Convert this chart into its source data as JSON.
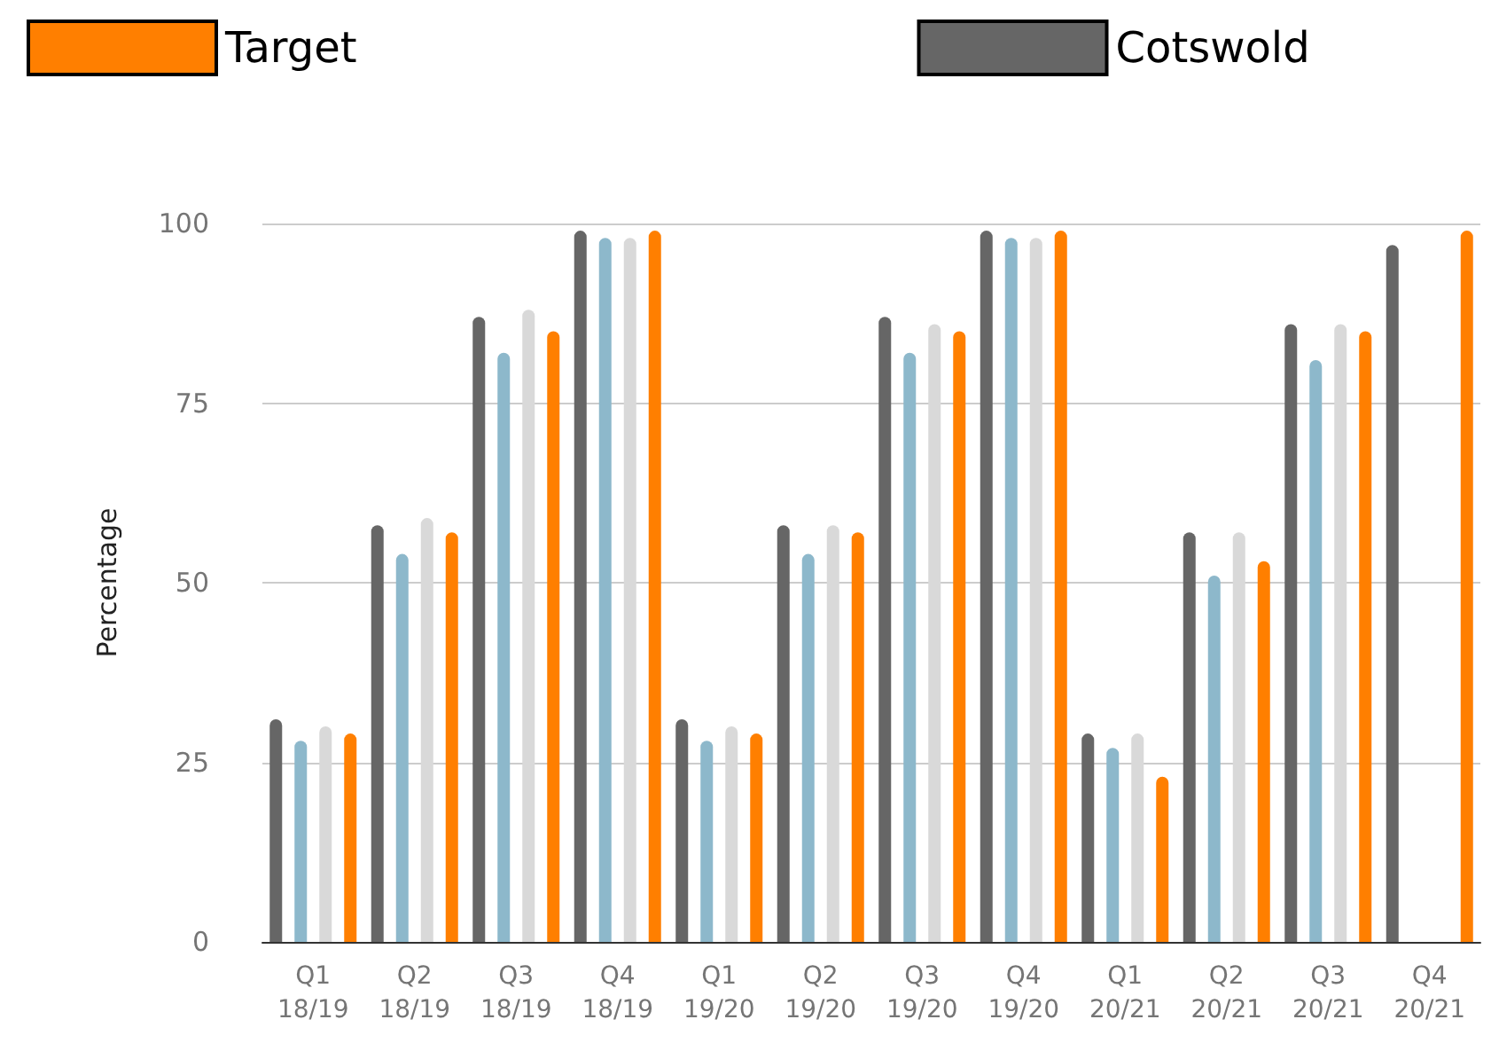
{
  "chart_data": {
    "type": "bar",
    "ylabel": "Percentage",
    "categories": [
      "Q1\n18/19",
      "Q2\n18/19",
      "Q3\n18/19",
      "Q4\n18/19",
      "Q1\n19/20",
      "Q2\n19/20",
      "Q3\n19/20",
      "Q4\n19/20",
      "Q1\n20/21",
      "Q2\n20/21",
      "Q3\n20/21",
      "Q4\n20/21"
    ],
    "series": [
      {
        "name": "Cotswold",
        "color": "#666666",
        "values": [
          31,
          58,
          87,
          99,
          31,
          58,
          87,
          99,
          29,
          57,
          86,
          97
        ]
      },
      {
        "color": "#8db8cb",
        "values": [
          28,
          54,
          82,
          98,
          28,
          54,
          82,
          98,
          27,
          51,
          81,
          null
        ]
      },
      {
        "color": "#d9d9d9",
        "values": [
          30,
          59,
          88,
          98,
          30,
          58,
          86,
          98,
          29,
          57,
          86,
          null
        ]
      },
      {
        "name": "Target",
        "color": "#ff7f00",
        "values": [
          29,
          57,
          85,
          99,
          29,
          57,
          85,
          99,
          23,
          53,
          85,
          99
        ]
      }
    ],
    "ylim": [
      0,
      100
    ],
    "yticks": [
      0,
      25,
      50,
      75,
      100
    ],
    "grid": "y",
    "legend": "top left"
  }
}
